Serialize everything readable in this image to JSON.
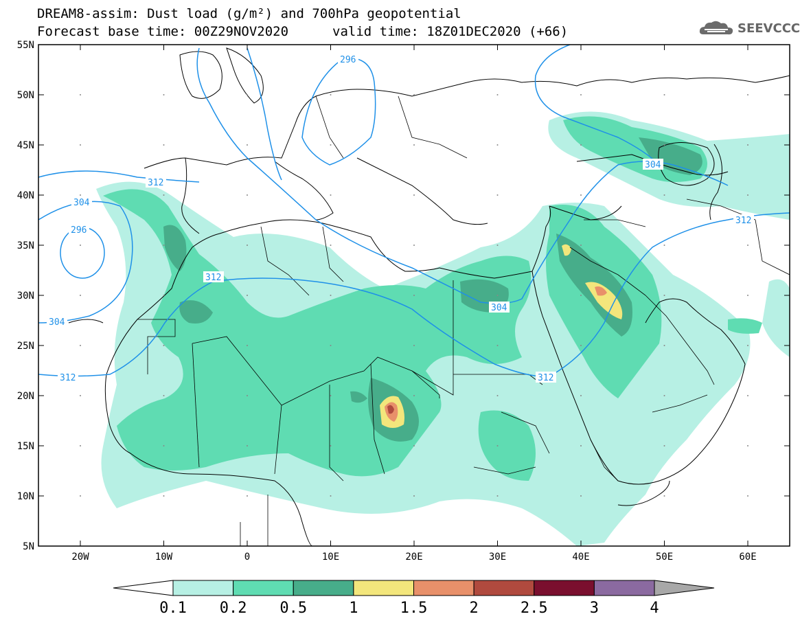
{
  "header": {
    "title_line1": "DREAM8-assim: Dust load (g/m²) and 700hPa geopotential",
    "title_line2": "Forecast base time: 00Z29NOV2020",
    "valid_time": "valid time: 18Z01DEC2020 (+66)"
  },
  "logo": {
    "text": "SEEVCCC",
    "icon": "cloud-icon"
  },
  "map": {
    "lat_labels": [
      "55N",
      "50N",
      "45N",
      "40N",
      "35N",
      "30N",
      "25N",
      "20N",
      "15N",
      "10N",
      "5N"
    ],
    "lon_labels": [
      "20W",
      "10W",
      "0",
      "10E",
      "20E",
      "30E",
      "40E",
      "50E",
      "60E"
    ],
    "contour_labels": [
      "296",
      "304",
      "312",
      "312",
      "296",
      "304",
      "312",
      "304",
      "312",
      "304",
      "312"
    ],
    "colors": {
      "coast": "#000000",
      "contour": "#1e90e8",
      "dust_0_1": "#b7f0e4",
      "dust_0_2": "#5fdcb2",
      "dust_0_5": "#47ad8a",
      "dust_1": "#f3e67c",
      "dust_1_5": "#e8906a",
      "dust_2": "#b04a3e"
    }
  },
  "colorbar": {
    "labels": [
      "0.1",
      "0.2",
      "0.5",
      "1",
      "1.5",
      "2",
      "2.5",
      "3",
      "4"
    ],
    "colors": [
      "#b7f0e4",
      "#5fdcb2",
      "#47ad8a",
      "#f3e67c",
      "#e8906a",
      "#b04a3e",
      "#7a0f2e",
      "#8b6aa0"
    ]
  }
}
